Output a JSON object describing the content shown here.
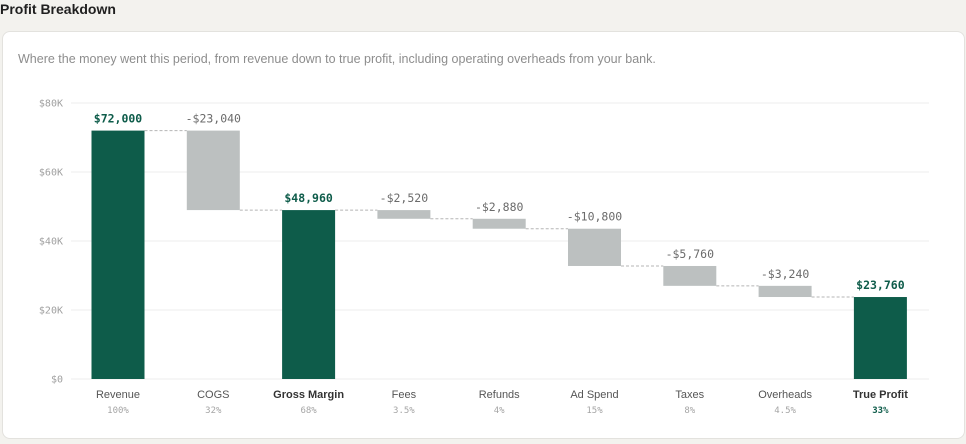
{
  "page": {
    "title": "Profit Breakdown",
    "subtitle": "Where the money went this period, from revenue down to true profit, including operating overheads from your bank."
  },
  "colors": {
    "total_bar": "#0e5c4a",
    "deduction_bar": "#bcc0c0",
    "total_label": "#0e5c4a",
    "deduction_label": "#6b6b6b",
    "axis_text": "#a0a0a0",
    "grid": "#ececec",
    "connector": "#b5b5b5"
  },
  "chart_data": {
    "type": "bar",
    "variant": "waterfall",
    "ylim": [
      0,
      80000
    ],
    "yticks": [
      0,
      20000,
      40000,
      60000,
      80000
    ],
    "ytick_labels": [
      "$0",
      "$20K",
      "$40K",
      "$60K",
      "$80K"
    ],
    "grid": true,
    "connectors": true,
    "items": [
      {
        "category": "Revenue",
        "kind": "total",
        "start": 0,
        "end": 72000,
        "value_label": "$72,000",
        "pct": "100%"
      },
      {
        "category": "COGS",
        "kind": "deduction",
        "start": 72000,
        "end": 48960,
        "value_label": "-$23,040",
        "pct": "32%"
      },
      {
        "category": "Gross Margin",
        "kind": "total",
        "start": 0,
        "end": 48960,
        "value_label": "$48,960",
        "pct": "68%"
      },
      {
        "category": "Fees",
        "kind": "deduction",
        "start": 48960,
        "end": 46440,
        "value_label": "-$2,520",
        "pct": "3.5%"
      },
      {
        "category": "Refunds",
        "kind": "deduction",
        "start": 46440,
        "end": 43560,
        "value_label": "-$2,880",
        "pct": "4%"
      },
      {
        "category": "Ad Spend",
        "kind": "deduction",
        "start": 43560,
        "end": 32760,
        "value_label": "-$10,800",
        "pct": "15%"
      },
      {
        "category": "Taxes",
        "kind": "deduction",
        "start": 32760,
        "end": 27000,
        "value_label": "-$5,760",
        "pct": "8%"
      },
      {
        "category": "Overheads",
        "kind": "deduction",
        "start": 27000,
        "end": 23760,
        "value_label": "-$3,240",
        "pct": "4.5%"
      },
      {
        "category": "True Profit",
        "kind": "total",
        "start": 0,
        "end": 23760,
        "value_label": "$23,760",
        "pct": "33%"
      }
    ]
  }
}
